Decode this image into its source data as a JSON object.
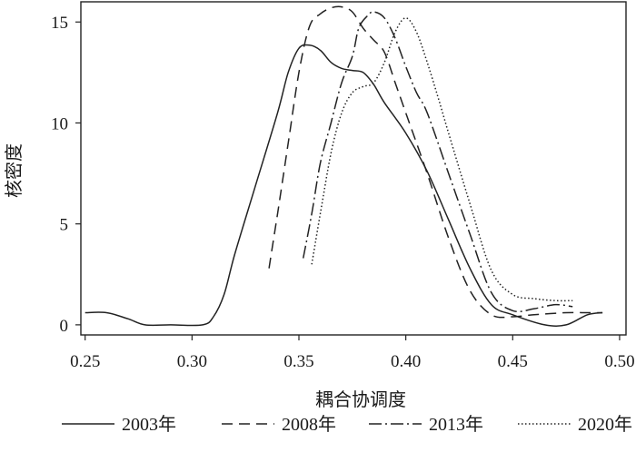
{
  "chart_data": {
    "type": "line",
    "title": "",
    "xlabel": "耦合协调度",
    "ylabel": "核密度",
    "xlim": [
      0.248,
      0.503
    ],
    "ylim": [
      -0.5,
      16
    ],
    "xticks": [
      0.25,
      0.3,
      0.35,
      0.4,
      0.45,
      0.5
    ],
    "xtick_labels": [
      "0.25",
      "0.30",
      "0.35",
      "0.40",
      "0.45",
      "0.50"
    ],
    "yticks": [
      0,
      5,
      10,
      15
    ],
    "ytick_labels": [
      "0",
      "5",
      "10",
      "15"
    ],
    "grid": false,
    "legend_position": "bottom",
    "series": [
      {
        "name": "2003年",
        "dash": "solid",
        "x": [
          0.25,
          0.26,
          0.27,
          0.278,
          0.29,
          0.305,
          0.31,
          0.315,
          0.32,
          0.33,
          0.34,
          0.345,
          0.35,
          0.355,
          0.36,
          0.365,
          0.37,
          0.375,
          0.38,
          0.385,
          0.39,
          0.4,
          0.41,
          0.42,
          0.43,
          0.44,
          0.45,
          0.465,
          0.475,
          0.485,
          0.492
        ],
        "y": [
          0.6,
          0.6,
          0.3,
          0.0,
          0.0,
          0.0,
          0.4,
          1.5,
          3.5,
          7.0,
          10.5,
          12.5,
          13.7,
          13.85,
          13.6,
          13.0,
          12.7,
          12.6,
          12.5,
          11.9,
          11.0,
          9.5,
          7.6,
          5.2,
          2.8,
          1.0,
          0.5,
          0.0,
          0.0,
          0.5,
          0.6
        ]
      },
      {
        "name": "2008年",
        "dash": "12 7",
        "x": [
          0.336,
          0.34,
          0.345,
          0.35,
          0.355,
          0.36,
          0.365,
          0.37,
          0.375,
          0.38,
          0.385,
          0.39,
          0.395,
          0.4,
          0.41,
          0.42,
          0.43,
          0.44,
          0.45,
          0.46,
          0.475,
          0.485,
          0.492
        ],
        "y": [
          2.8,
          5.5,
          9.0,
          12.5,
          14.8,
          15.4,
          15.7,
          15.75,
          15.5,
          14.7,
          14.1,
          13.5,
          12.0,
          10.5,
          7.5,
          4.3,
          1.7,
          0.5,
          0.4,
          0.5,
          0.6,
          0.6,
          0.6
        ]
      },
      {
        "name": "2013年",
        "dash": "14 4 2 4",
        "x": [
          0.352,
          0.356,
          0.36,
          0.365,
          0.37,
          0.375,
          0.378,
          0.382,
          0.385,
          0.39,
          0.395,
          0.4,
          0.405,
          0.41,
          0.42,
          0.43,
          0.44,
          0.45,
          0.46,
          0.47,
          0.478
        ],
        "y": [
          3.3,
          5.5,
          8.0,
          10.0,
          12.0,
          13.3,
          14.7,
          15.3,
          15.5,
          15.2,
          14.2,
          12.8,
          11.5,
          10.5,
          7.5,
          4.5,
          1.6,
          0.7,
          0.8,
          1.0,
          0.9
        ]
      },
      {
        "name": "2020年",
        "dash": "1.5 2.5",
        "x": [
          0.356,
          0.36,
          0.365,
          0.37,
          0.375,
          0.38,
          0.385,
          0.39,
          0.395,
          0.4,
          0.405,
          0.41,
          0.415,
          0.42,
          0.43,
          0.44,
          0.45,
          0.46,
          0.47,
          0.478
        ],
        "y": [
          3.0,
          5.5,
          8.5,
          10.5,
          11.5,
          11.8,
          12.0,
          13.0,
          14.5,
          15.2,
          14.5,
          13.0,
          11.3,
          9.5,
          6.0,
          2.7,
          1.5,
          1.3,
          1.2,
          1.2
        ]
      }
    ]
  }
}
